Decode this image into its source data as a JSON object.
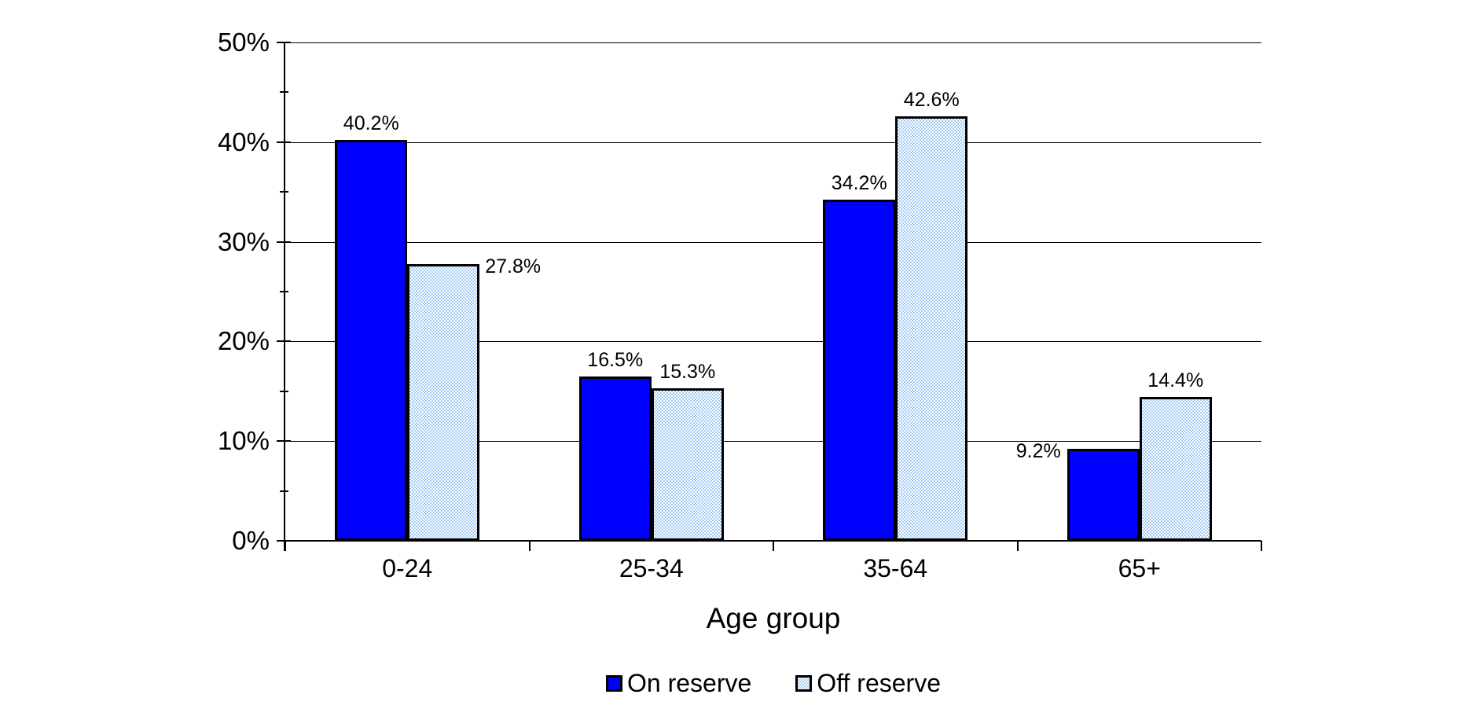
{
  "chart_data": {
    "type": "bar",
    "title": "",
    "xlabel": "Age group",
    "ylabel": "",
    "ylim": [
      0,
      50
    ],
    "ytick_step": 10,
    "ytick_minor_step": 5,
    "ytick_labels": [
      "0%",
      "10%",
      "20%",
      "30%",
      "40%",
      "50%"
    ],
    "grid": true,
    "legend_position": "bottom",
    "categories": [
      "0-24",
      "25-34",
      "35-64",
      "65+"
    ],
    "series": [
      {
        "name": "On reserve",
        "fill": "solid",
        "color": "#0000FF",
        "values": [
          40.2,
          16.5,
          34.2,
          9.2
        ],
        "labels": [
          "40.2%",
          "16.5%",
          "34.2%",
          "9.2%"
        ],
        "label_positions": [
          "above",
          "above",
          "above",
          "left"
        ]
      },
      {
        "name": "Off reserve",
        "fill": "checker",
        "color": "#A4CBF4",
        "values": [
          27.8,
          15.3,
          42.6,
          14.4
        ],
        "labels": [
          "27.8%",
          "15.3%",
          "42.6%",
          "14.4%"
        ],
        "label_positions": [
          "right",
          "above",
          "above",
          "above"
        ]
      }
    ]
  },
  "colors": {
    "background": "#FFFFFF",
    "axis": "#000000",
    "bar_border": "#000000",
    "text": "#000000"
  }
}
